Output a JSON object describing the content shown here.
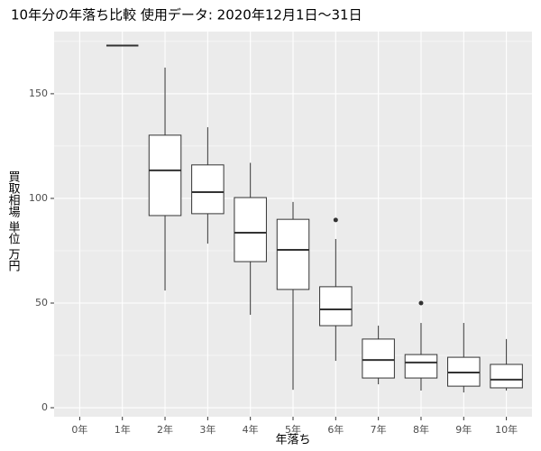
{
  "chart_data": {
    "type": "box",
    "title": "10年分の年落ち比較 使用データ: 2020年12月1日～31日",
    "x_label": "年落ち",
    "y_label": "買取相場 単位 万円",
    "categories": [
      "0年",
      "1年",
      "2年",
      "3年",
      "4年",
      "5年",
      "6年",
      "7年",
      "8年",
      "9年",
      "10年"
    ],
    "min": [
      null,
      173,
      56,
      78.4,
      44.4,
      8.6,
      22.4,
      11.2,
      8.2,
      7.3,
      8.2
    ],
    "q1": [
      null,
      173,
      91.8,
      92.7,
      69.8,
      56.5,
      39.2,
      14.2,
      14.2,
      10.3,
      9.5
    ],
    "median": [
      null,
      173,
      113.4,
      103,
      83.6,
      75.4,
      47,
      22.8,
      21.6,
      16.8,
      13.4
    ],
    "q3": [
      null,
      173,
      130.2,
      116,
      100.4,
      90,
      57.8,
      32.8,
      25.4,
      24.1,
      20.7
    ],
    "max": [
      null,
      173,
      162.5,
      134,
      117,
      98.3,
      80.6,
      39.2,
      40.5,
      40.5,
      32.8
    ],
    "outliers": [
      [],
      [],
      [],
      [],
      [],
      [],
      [
        89.7
      ],
      [],
      [
        50
      ],
      [],
      []
    ],
    "color": "#333333",
    "fill": "#ffffff",
    "ylim": [
      -4.3,
      179.7
    ],
    "yticks": [
      0,
      50,
      100,
      150
    ],
    "minor_yticks": [
      25,
      75,
      125,
      175
    ],
    "grid": true
  }
}
